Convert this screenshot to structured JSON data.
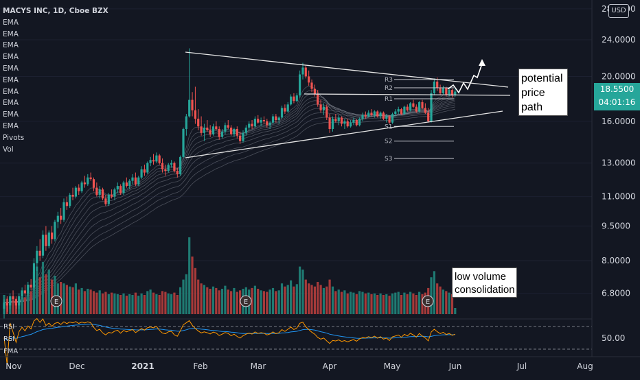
{
  "header": {
    "symbol": "MACYS INC, 1D, Cboe BZX",
    "indicators": [
      "EMA",
      "EMA",
      "EMA",
      "EMA",
      "EMA",
      "EMA",
      "EMA",
      "EMA",
      "EMA",
      "EMA",
      "Pivots",
      "Vol"
    ],
    "currency_button": "USD"
  },
  "price_badge": {
    "price": "18.5500",
    "countdown": "04:01:16"
  },
  "annotations": {
    "price_path": [
      "potential",
      "price",
      "path"
    ],
    "volume": [
      "low volume",
      "consolidation"
    ]
  },
  "pane_labels": {
    "rsi1": "RSI",
    "rsi2": "RSI",
    "fma": "FMA",
    "rsi_level": "50.00"
  },
  "colors": {
    "up": "#26a69a",
    "down": "#ef5350",
    "background": "#131722",
    "rsi_line": "#ff9800",
    "rsi_ma": "#2196f3"
  },
  "chart_data": {
    "type": "candlestick",
    "title": "MACYS INC, 1D, Cboe BZX",
    "price_axis": {
      "scale": "log",
      "ticks": [
        "28.0000",
        "24.0000",
        "20.0000",
        "16.0000",
        "13.0000",
        "11.0000",
        "9.5000",
        "8.0000",
        "6.8000"
      ],
      "ylim": [
        6.3,
        28.0
      ]
    },
    "time_axis": {
      "ticks": [
        "Nov",
        "Dec",
        "2021",
        "Feb",
        "Mar",
        "Apr",
        "May",
        "Jun",
        "Jul",
        "Aug"
      ]
    },
    "pivot_levels": [
      {
        "label": "R3",
        "value": 19.7
      },
      {
        "label": "R2",
        "value": 18.9
      },
      {
        "label": "R1",
        "value": 17.9
      },
      {
        "label": "S1",
        "value": 15.6
      },
      {
        "label": "S2",
        "value": 14.5
      },
      {
        "label": "S3",
        "value": 13.3
      }
    ],
    "earnings_markers": [
      "E",
      "E",
      "E"
    ],
    "last_price": 18.55,
    "candles": [
      {
        "o": 6.3,
        "h": 6.6,
        "l": 6.0,
        "c": 6.5
      },
      {
        "o": 6.5,
        "h": 6.7,
        "l": 6.2,
        "c": 6.4
      },
      {
        "o": 6.4,
        "h": 6.8,
        "l": 6.3,
        "c": 6.7
      },
      {
        "o": 6.7,
        "h": 6.9,
        "l": 6.5,
        "c": 6.6
      },
      {
        "o": 6.6,
        "h": 6.7,
        "l": 6.3,
        "c": 6.4
      },
      {
        "o": 6.4,
        "h": 6.8,
        "l": 6.3,
        "c": 6.7
      },
      {
        "o": 6.7,
        "h": 7.0,
        "l": 6.6,
        "c": 6.9
      },
      {
        "o": 6.9,
        "h": 7.1,
        "l": 6.7,
        "c": 6.8
      },
      {
        "o": 6.8,
        "h": 7.2,
        "l": 6.7,
        "c": 7.1
      },
      {
        "o": 7.1,
        "h": 7.3,
        "l": 6.9,
        "c": 7.0
      },
      {
        "o": 7.0,
        "h": 8.1,
        "l": 6.9,
        "c": 7.9
      },
      {
        "o": 7.9,
        "h": 8.6,
        "l": 7.6,
        "c": 8.4
      },
      {
        "o": 8.4,
        "h": 8.9,
        "l": 8.0,
        "c": 8.2
      },
      {
        "o": 8.2,
        "h": 9.3,
        "l": 8.1,
        "c": 9.1
      },
      {
        "o": 9.1,
        "h": 9.5,
        "l": 8.4,
        "c": 8.6
      },
      {
        "o": 8.6,
        "h": 9.3,
        "l": 8.5,
        "c": 9.2
      },
      {
        "o": 9.2,
        "h": 9.5,
        "l": 8.7,
        "c": 8.9
      },
      {
        "o": 8.9,
        "h": 9.8,
        "l": 8.8,
        "c": 9.7
      },
      {
        "o": 9.7,
        "h": 10.2,
        "l": 9.4,
        "c": 10.0
      },
      {
        "o": 10.0,
        "h": 10.4,
        "l": 9.6,
        "c": 9.8
      },
      {
        "o": 9.8,
        "h": 10.9,
        "l": 9.7,
        "c": 10.7
      },
      {
        "o": 10.7,
        "h": 11.0,
        "l": 10.3,
        "c": 10.5
      },
      {
        "o": 10.5,
        "h": 11.2,
        "l": 10.4,
        "c": 11.1
      },
      {
        "o": 11.1,
        "h": 11.5,
        "l": 10.8,
        "c": 11.0
      },
      {
        "o": 11.0,
        "h": 11.6,
        "l": 10.9,
        "c": 11.5
      },
      {
        "o": 11.5,
        "h": 11.7,
        "l": 11.1,
        "c": 11.3
      },
      {
        "o": 11.3,
        "h": 11.9,
        "l": 11.2,
        "c": 11.8
      },
      {
        "o": 11.8,
        "h": 12.2,
        "l": 11.5,
        "c": 11.7
      },
      {
        "o": 11.7,
        "h": 12.3,
        "l": 11.6,
        "c": 12.1
      },
      {
        "o": 12.1,
        "h": 12.4,
        "l": 11.9,
        "c": 12.0
      },
      {
        "o": 12.0,
        "h": 12.1,
        "l": 11.3,
        "c": 11.5
      },
      {
        "o": 11.5,
        "h": 11.8,
        "l": 11.0,
        "c": 11.1
      },
      {
        "o": 11.1,
        "h": 11.6,
        "l": 10.9,
        "c": 11.4
      },
      {
        "o": 11.4,
        "h": 11.5,
        "l": 10.8,
        "c": 10.9
      },
      {
        "o": 10.9,
        "h": 11.1,
        "l": 10.5,
        "c": 10.6
      },
      {
        "o": 10.6,
        "h": 11.2,
        "l": 10.5,
        "c": 11.1
      },
      {
        "o": 11.1,
        "h": 11.4,
        "l": 10.9,
        "c": 11.0
      },
      {
        "o": 11.0,
        "h": 11.5,
        "l": 10.8,
        "c": 11.4
      },
      {
        "o": 11.4,
        "h": 11.8,
        "l": 11.2,
        "c": 11.6
      },
      {
        "o": 11.6,
        "h": 11.7,
        "l": 11.1,
        "c": 11.2
      },
      {
        "o": 11.2,
        "h": 11.9,
        "l": 11.1,
        "c": 11.8
      },
      {
        "o": 11.8,
        "h": 12.1,
        "l": 11.5,
        "c": 11.6
      },
      {
        "o": 11.6,
        "h": 12.0,
        "l": 11.4,
        "c": 11.9
      },
      {
        "o": 11.9,
        "h": 12.3,
        "l": 11.7,
        "c": 12.1
      },
      {
        "o": 12.1,
        "h": 12.4,
        "l": 11.6,
        "c": 11.7
      },
      {
        "o": 11.7,
        "h": 12.2,
        "l": 11.6,
        "c": 12.1
      },
      {
        "o": 12.1,
        "h": 12.8,
        "l": 12.0,
        "c": 12.6
      },
      {
        "o": 12.6,
        "h": 12.9,
        "l": 12.2,
        "c": 12.4
      },
      {
        "o": 12.4,
        "h": 13.1,
        "l": 12.3,
        "c": 13.0
      },
      {
        "o": 13.0,
        "h": 13.4,
        "l": 12.8,
        "c": 13.2
      },
      {
        "o": 13.2,
        "h": 13.6,
        "l": 12.9,
        "c": 13.1
      },
      {
        "o": 13.1,
        "h": 13.7,
        "l": 13.0,
        "c": 13.5
      },
      {
        "o": 13.5,
        "h": 13.6,
        "l": 12.9,
        "c": 13.0
      },
      {
        "o": 13.0,
        "h": 13.3,
        "l": 12.4,
        "c": 12.6
      },
      {
        "o": 12.6,
        "h": 12.9,
        "l": 12.2,
        "c": 12.5
      },
      {
        "o": 12.5,
        "h": 13.0,
        "l": 12.4,
        "c": 12.9
      },
      {
        "o": 12.9,
        "h": 13.2,
        "l": 12.7,
        "c": 13.0
      },
      {
        "o": 13.0,
        "h": 13.1,
        "l": 12.4,
        "c": 12.5
      },
      {
        "o": 12.5,
        "h": 12.7,
        "l": 12.1,
        "c": 12.3
      },
      {
        "o": 12.3,
        "h": 13.5,
        "l": 12.2,
        "c": 13.4
      },
      {
        "o": 13.4,
        "h": 15.5,
        "l": 13.3,
        "c": 15.4
      },
      {
        "o": 15.4,
        "h": 16.6,
        "l": 14.9,
        "c": 16.4
      },
      {
        "o": 16.4,
        "h": 23.0,
        "l": 16.3,
        "c": 17.8
      },
      {
        "o": 17.8,
        "h": 18.5,
        "l": 16.4,
        "c": 16.9
      },
      {
        "o": 16.9,
        "h": 19.0,
        "l": 15.8,
        "c": 16.2
      },
      {
        "o": 16.2,
        "h": 17.0,
        "l": 15.3,
        "c": 15.6
      },
      {
        "o": 15.6,
        "h": 16.4,
        "l": 14.9,
        "c": 15.1
      },
      {
        "o": 15.1,
        "h": 15.8,
        "l": 14.5,
        "c": 15.5
      },
      {
        "o": 15.5,
        "h": 16.1,
        "l": 15.2,
        "c": 15.3
      },
      {
        "o": 15.3,
        "h": 15.7,
        "l": 14.8,
        "c": 15.0
      },
      {
        "o": 15.0,
        "h": 15.8,
        "l": 14.9,
        "c": 15.6
      },
      {
        "o": 15.6,
        "h": 16.0,
        "l": 15.3,
        "c": 15.4
      },
      {
        "o": 15.4,
        "h": 15.6,
        "l": 14.6,
        "c": 14.8
      },
      {
        "o": 14.8,
        "h": 15.4,
        "l": 14.7,
        "c": 15.2
      },
      {
        "o": 15.2,
        "h": 15.9,
        "l": 15.0,
        "c": 15.7
      },
      {
        "o": 15.7,
        "h": 16.1,
        "l": 15.4,
        "c": 15.5
      },
      {
        "o": 15.5,
        "h": 15.7,
        "l": 14.9,
        "c": 15.0
      },
      {
        "o": 15.0,
        "h": 15.5,
        "l": 14.8,
        "c": 15.4
      },
      {
        "o": 15.4,
        "h": 15.6,
        "l": 14.7,
        "c": 14.9
      },
      {
        "o": 14.9,
        "h": 15.2,
        "l": 14.3,
        "c": 14.5
      },
      {
        "o": 14.5,
        "h": 15.3,
        "l": 14.4,
        "c": 15.1
      },
      {
        "o": 15.1,
        "h": 15.7,
        "l": 14.9,
        "c": 15.5
      },
      {
        "o": 15.5,
        "h": 16.0,
        "l": 15.3,
        "c": 15.8
      },
      {
        "o": 15.8,
        "h": 16.1,
        "l": 15.4,
        "c": 15.6
      },
      {
        "o": 15.6,
        "h": 16.4,
        "l": 15.5,
        "c": 16.2
      },
      {
        "o": 16.2,
        "h": 16.5,
        "l": 15.8,
        "c": 15.9
      },
      {
        "o": 15.9,
        "h": 16.3,
        "l": 15.6,
        "c": 16.1
      },
      {
        "o": 16.1,
        "h": 16.4,
        "l": 15.8,
        "c": 16.0
      },
      {
        "o": 16.0,
        "h": 16.2,
        "l": 15.5,
        "c": 15.7
      },
      {
        "o": 15.7,
        "h": 16.0,
        "l": 15.4,
        "c": 15.9
      },
      {
        "o": 15.9,
        "h": 16.6,
        "l": 15.8,
        "c": 16.4
      },
      {
        "o": 16.4,
        "h": 16.6,
        "l": 15.9,
        "c": 16.1
      },
      {
        "o": 16.1,
        "h": 16.4,
        "l": 15.8,
        "c": 16.3
      },
      {
        "o": 16.3,
        "h": 17.3,
        "l": 16.2,
        "c": 17.1
      },
      {
        "o": 17.1,
        "h": 17.4,
        "l": 16.6,
        "c": 16.8
      },
      {
        "o": 16.8,
        "h": 17.6,
        "l": 16.7,
        "c": 17.4
      },
      {
        "o": 17.4,
        "h": 18.3,
        "l": 17.3,
        "c": 18.1
      },
      {
        "o": 18.1,
        "h": 18.4,
        "l": 17.5,
        "c": 17.7
      },
      {
        "o": 17.7,
        "h": 18.4,
        "l": 17.6,
        "c": 18.2
      },
      {
        "o": 18.2,
        "h": 20.6,
        "l": 18.0,
        "c": 20.2
      },
      {
        "o": 20.2,
        "h": 21.4,
        "l": 19.7,
        "c": 20.9
      },
      {
        "o": 20.9,
        "h": 21.1,
        "l": 19.8,
        "c": 20.0
      },
      {
        "o": 20.0,
        "h": 20.6,
        "l": 19.1,
        "c": 19.4
      },
      {
        "o": 19.4,
        "h": 19.7,
        "l": 18.5,
        "c": 18.8
      },
      {
        "o": 18.8,
        "h": 19.2,
        "l": 18.1,
        "c": 18.3
      },
      {
        "o": 18.3,
        "h": 18.7,
        "l": 17.2,
        "c": 17.4
      },
      {
        "o": 17.4,
        "h": 17.8,
        "l": 16.7,
        "c": 16.9
      },
      {
        "o": 16.9,
        "h": 17.5,
        "l": 16.5,
        "c": 17.2
      },
      {
        "o": 17.2,
        "h": 17.4,
        "l": 16.1,
        "c": 16.3
      },
      {
        "o": 16.3,
        "h": 16.6,
        "l": 15.1,
        "c": 15.4
      },
      {
        "o": 15.4,
        "h": 16.4,
        "l": 15.2,
        "c": 16.2
      },
      {
        "o": 16.2,
        "h": 16.6,
        "l": 15.9,
        "c": 16.0
      },
      {
        "o": 16.0,
        "h": 16.5,
        "l": 15.7,
        "c": 16.3
      },
      {
        "o": 16.3,
        "h": 16.4,
        "l": 15.6,
        "c": 15.8
      },
      {
        "o": 15.8,
        "h": 16.2,
        "l": 15.4,
        "c": 16.0
      },
      {
        "o": 16.0,
        "h": 16.2,
        "l": 15.5,
        "c": 15.6
      },
      {
        "o": 15.6,
        "h": 16.1,
        "l": 15.5,
        "c": 15.9
      },
      {
        "o": 15.9,
        "h": 16.3,
        "l": 15.7,
        "c": 16.1
      },
      {
        "o": 16.1,
        "h": 16.2,
        "l": 15.6,
        "c": 15.7
      },
      {
        "o": 15.7,
        "h": 16.3,
        "l": 15.6,
        "c": 16.2
      },
      {
        "o": 16.2,
        "h": 16.7,
        "l": 16.0,
        "c": 16.5
      },
      {
        "o": 16.5,
        "h": 16.8,
        "l": 16.2,
        "c": 16.4
      },
      {
        "o": 16.4,
        "h": 16.9,
        "l": 16.3,
        "c": 16.7
      },
      {
        "o": 16.7,
        "h": 17.0,
        "l": 16.4,
        "c": 16.5
      },
      {
        "o": 16.5,
        "h": 16.9,
        "l": 16.3,
        "c": 16.8
      },
      {
        "o": 16.8,
        "h": 16.9,
        "l": 16.3,
        "c": 16.4
      },
      {
        "o": 16.4,
        "h": 16.8,
        "l": 16.2,
        "c": 16.7
      },
      {
        "o": 16.7,
        "h": 16.8,
        "l": 16.1,
        "c": 16.2
      },
      {
        "o": 16.2,
        "h": 16.6,
        "l": 15.9,
        "c": 16.4
      },
      {
        "o": 16.4,
        "h": 16.5,
        "l": 15.8,
        "c": 15.9
      },
      {
        "o": 15.9,
        "h": 16.7,
        "l": 15.8,
        "c": 16.6
      },
      {
        "o": 16.6,
        "h": 17.0,
        "l": 16.4,
        "c": 16.8
      },
      {
        "o": 16.8,
        "h": 17.2,
        "l": 16.6,
        "c": 17.0
      },
      {
        "o": 17.0,
        "h": 17.1,
        "l": 16.5,
        "c": 16.6
      },
      {
        "o": 16.6,
        "h": 17.3,
        "l": 16.5,
        "c": 17.2
      },
      {
        "o": 17.2,
        "h": 17.4,
        "l": 16.8,
        "c": 16.9
      },
      {
        "o": 16.9,
        "h": 17.6,
        "l": 16.8,
        "c": 17.5
      },
      {
        "o": 17.5,
        "h": 17.8,
        "l": 17.1,
        "c": 17.2
      },
      {
        "o": 17.2,
        "h": 17.4,
        "l": 16.7,
        "c": 16.8
      },
      {
        "o": 16.8,
        "h": 17.7,
        "l": 16.7,
        "c": 17.6
      },
      {
        "o": 17.6,
        "h": 17.8,
        "l": 17.0,
        "c": 17.1
      },
      {
        "o": 17.1,
        "h": 17.5,
        "l": 16.6,
        "c": 16.7
      },
      {
        "o": 16.7,
        "h": 17.1,
        "l": 15.9,
        "c": 16.0
      },
      {
        "o": 16.0,
        "h": 18.7,
        "l": 15.9,
        "c": 18.4
      },
      {
        "o": 18.4,
        "h": 19.8,
        "l": 18.2,
        "c": 19.5
      },
      {
        "o": 19.5,
        "h": 19.9,
        "l": 18.6,
        "c": 18.9
      },
      {
        "o": 18.9,
        "h": 19.2,
        "l": 18.2,
        "c": 18.4
      },
      {
        "o": 18.4,
        "h": 19.1,
        "l": 18.3,
        "c": 18.9
      },
      {
        "o": 18.9,
        "h": 19.0,
        "l": 18.1,
        "c": 18.3
      },
      {
        "o": 18.3,
        "h": 18.9,
        "l": 18.1,
        "c": 18.7
      },
      {
        "o": 18.7,
        "h": 18.8,
        "l": 18.0,
        "c": 18.2
      },
      {
        "o": 18.2,
        "h": 18.9,
        "l": 18.1,
        "c": 18.55
      }
    ],
    "volume": [
      0.25,
      0.2,
      0.22,
      0.18,
      0.2,
      0.17,
      0.23,
      0.22,
      0.28,
      0.3,
      0.55,
      0.62,
      0.48,
      0.68,
      0.52,
      0.58,
      0.45,
      0.5,
      0.4,
      0.42,
      0.4,
      0.38,
      0.36,
      0.35,
      0.4,
      0.32,
      0.34,
      0.3,
      0.33,
      0.32,
      0.3,
      0.28,
      0.31,
      0.27,
      0.29,
      0.26,
      0.28,
      0.27,
      0.26,
      0.25,
      0.27,
      0.24,
      0.26,
      0.25,
      0.28,
      0.24,
      0.27,
      0.25,
      0.3,
      0.32,
      0.28,
      0.26,
      0.25,
      0.3,
      0.29,
      0.27,
      0.26,
      0.28,
      0.25,
      0.35,
      0.45,
      0.52,
      1.0,
      0.75,
      0.6,
      0.45,
      0.4,
      0.38,
      0.35,
      0.33,
      0.36,
      0.34,
      0.31,
      0.33,
      0.37,
      0.32,
      0.3,
      0.34,
      0.29,
      0.31,
      0.33,
      0.35,
      0.32,
      0.34,
      0.37,
      0.33,
      0.31,
      0.3,
      0.29,
      0.32,
      0.34,
      0.3,
      0.31,
      0.4,
      0.36,
      0.38,
      0.44,
      0.36,
      0.39,
      0.62,
      0.58,
      0.45,
      0.4,
      0.38,
      0.36,
      0.42,
      0.38,
      0.34,
      0.36,
      0.45,
      0.36,
      0.3,
      0.32,
      0.29,
      0.31,
      0.27,
      0.29,
      0.28,
      0.26,
      0.3,
      0.29,
      0.27,
      0.28,
      0.26,
      0.27,
      0.25,
      0.27,
      0.25,
      0.26,
      0.24,
      0.27,
      0.28,
      0.29,
      0.25,
      0.28,
      0.26,
      0.29,
      0.27,
      0.25,
      0.29,
      0.26,
      0.28,
      0.34,
      0.48,
      0.56,
      0.4,
      0.36,
      0.32,
      0.3,
      0.28,
      0.26,
      0.08
    ]
  }
}
